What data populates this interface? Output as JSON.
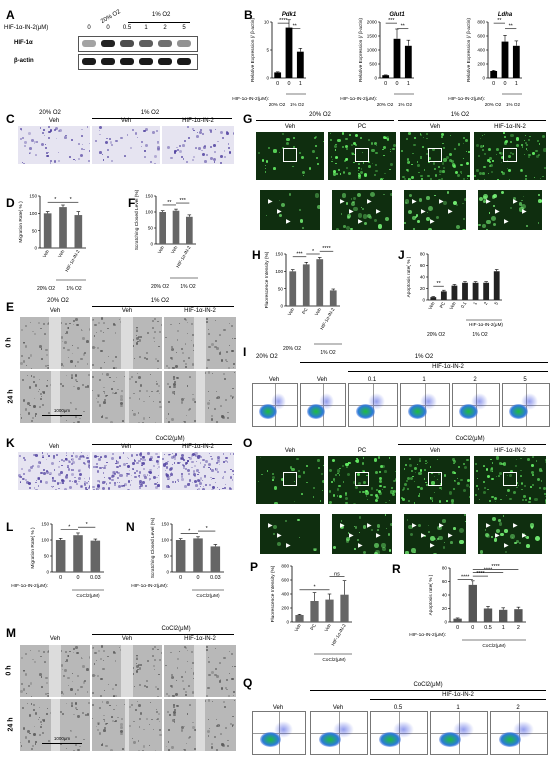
{
  "panels": {
    "A": {
      "letter": "A",
      "conditions": [
        "20% O2",
        "1% O2"
      ],
      "row_label": "HIF-1α-IN-2(μM)",
      "doses": [
        "0",
        "0",
        "0.5",
        "1",
        "2",
        "5"
      ],
      "bands": [
        {
          "label": "HIF-1α",
          "intensity": [
            0.2,
            0.95,
            0.7,
            0.6,
            0.5,
            0.3
          ]
        },
        {
          "label": "β-actin",
          "intensity": [
            1,
            1,
            1,
            1,
            1,
            1
          ]
        }
      ]
    },
    "B": {
      "letter": "B",
      "dose_label": "HIF-1α-IN-2(μM):",
      "ylabel": "Relative Expression (/ β-actin)",
      "doses": [
        "0",
        "0",
        "1"
      ],
      "groups": [
        "20% O2",
        "1% O2"
      ]
    },
    "C": {
      "letter": "C",
      "headers": [
        "20% O2",
        "1% O2"
      ],
      "images": [
        "Veh",
        "Veh",
        "HIF-1α-IN-2"
      ]
    },
    "D": {
      "letter": "D",
      "ylabel": "Migration Rate( % )",
      "cats": [
        "Veh",
        "Veh",
        "HIF-1α-IN-2"
      ],
      "groups": [
        "20% O2",
        "1% O2"
      ],
      "sig": [
        "*",
        "*"
      ]
    },
    "F": {
      "letter": "F",
      "ylabel": "Scratching Closed Level (%)",
      "cats": [
        "Veh",
        "Veh",
        "HIF-1α-IN-2"
      ],
      "groups": [
        "20% O2",
        "1% O2"
      ],
      "sig": [
        "**",
        "***"
      ]
    },
    "E": {
      "letter": "E",
      "headers": [
        "20% O2",
        "1% O2"
      ],
      "cols": [
        "Veh",
        "Veh",
        "HIF-1α-IN-2"
      ],
      "rows": [
        "0 h",
        "24 h"
      ],
      "scale": "1000μm"
    },
    "G": {
      "letter": "G",
      "headers": [
        "20% O2",
        "1% O2"
      ],
      "cols": [
        "Veh",
        "PC",
        "Veh",
        "HIF-1α-IN-2"
      ]
    },
    "H": {
      "letter": "H",
      "ylabel": "Fluorescence Intensity (%)",
      "cats": [
        "Veh",
        "PC",
        "Veh",
        "HIF-1α-IN-2"
      ],
      "groups": [
        "20% O2",
        "1% O2"
      ],
      "sig": [
        "***",
        "*",
        "****"
      ]
    },
    "J": {
      "letter": "J",
      "ylabel": "Apoptosis rate( % )",
      "cats": [
        "Veh",
        "PC",
        "Veh",
        "0.1",
        "1",
        "2",
        "5"
      ],
      "inhibitor": "HIF-1α-IN-2(μM)",
      "groups": [
        "20% O2",
        "1% O2"
      ],
      "sig": [
        "**"
      ]
    },
    "I": {
      "letter": "I",
      "group_left": "20% O2",
      "group_right": "1% O2",
      "inhibitor": "HIF-1α-IN-2",
      "cols": [
        "Veh",
        "Veh",
        "0.1",
        "1",
        "2",
        "5"
      ]
    },
    "K": {
      "letter": "K",
      "headers": [
        "CoCl2(μM)"
      ],
      "images": [
        "Veh",
        "Veh",
        "HIF-1α-IN-2"
      ]
    },
    "L": {
      "letter": "L",
      "ylabel": "Migration Rate( % )",
      "dose_label": "HIF-1α-IN-2(μM):",
      "doses": [
        "0",
        "0",
        "0.03"
      ],
      "group": "CoCl2(μM)",
      "sig": [
        "*",
        "*"
      ]
    },
    "N": {
      "letter": "N",
      "ylabel": "Scratching Closed Level (%)",
      "dose_label": "HIF-1α-IN-2(μM):",
      "doses": [
        "0",
        "0",
        "0.03"
      ],
      "group": "CoCl2(μM)",
      "sig": [
        "*",
        "*"
      ]
    },
    "M": {
      "letter": "M",
      "header": "CoCl2(μM)",
      "cols": [
        "Veh",
        "Veh",
        "HIF-1α-IN-2"
      ],
      "rows": [
        "0 h",
        "24 h"
      ],
      "scale": "1000μm"
    },
    "O": {
      "letter": "O",
      "header": "CoCl2(μM)",
      "cols": [
        "Veh",
        "PC",
        "Veh",
        "HIF-1α-IN-2"
      ]
    },
    "P": {
      "letter": "P",
      "ylabel": "Fluorescence Intensity (%)",
      "cats": [
        "Veh",
        "PC",
        "Veh",
        "HIF-1α-IN-2"
      ],
      "group": "CoCl2(μM)",
      "sig": [
        "*",
        "ns"
      ]
    },
    "R": {
      "letter": "R",
      "ylabel": "Apoptosis rate( % )",
      "dose_label": "HIF-1α-IN-2(μM):",
      "doses": [
        "0",
        "0",
        "0.5",
        "1",
        "2"
      ],
      "group": "CoCl2(μM)",
      "sig": [
        "****",
        "****",
        "****",
        "****"
      ]
    },
    "Q": {
      "letter": "Q",
      "header": "CoCl2(μM)",
      "inhibitor": "HIF-1α-IN-2",
      "cols": [
        "Veh",
        "Veh",
        "0.5",
        "1",
        "2"
      ]
    }
  },
  "chart_data": [
    {
      "type": "bar",
      "id": "B-Pdk1",
      "title": "Pdk1",
      "ylabel": "Relative Expression (/ β-actin)",
      "categories": [
        "0",
        "0",
        "1"
      ],
      "values": [
        1,
        9,
        4.7
      ],
      "errors": [
        0.1,
        1.4,
        0.6
      ],
      "ylim": [
        0,
        10
      ],
      "yticks": [
        0,
        5,
        10
      ],
      "sig": [
        "****",
        "**"
      ]
    },
    {
      "type": "bar",
      "id": "B-Glut1",
      "title": "Glut1",
      "ylabel": "Relative Expression (/ β-actin)",
      "categories": [
        "0",
        "0",
        "1"
      ],
      "values": [
        100,
        1400,
        1150
      ],
      "errors": [
        10,
        350,
        200
      ],
      "ylim": [
        0,
        2000
      ],
      "yticks": [
        0,
        500,
        1000,
        1500,
        2000
      ],
      "sig": [
        "***",
        "**"
      ]
    },
    {
      "type": "bar",
      "id": "B-Ldha",
      "title": "Ldha",
      "ylabel": "Relative Expression (/ β-actin)",
      "categories": [
        "0",
        "0",
        "1"
      ],
      "values": [
        100,
        520,
        460
      ],
      "errors": [
        10,
        90,
        70
      ],
      "ylim": [
        0,
        800
      ],
      "yticks": [
        0,
        200,
        400,
        600,
        800
      ],
      "sig": [
        "**",
        "**"
      ]
    },
    {
      "type": "bar",
      "id": "D",
      "categories": [
        "Veh",
        "Veh",
        "HIF-1α-IN-2"
      ],
      "values": [
        100,
        118,
        95
      ],
      "errors": [
        5,
        6,
        10
      ],
      "ylim": [
        0,
        150
      ],
      "yticks": [
        0,
        50,
        100,
        150
      ]
    },
    {
      "type": "bar",
      "id": "F",
      "categories": [
        "Veh",
        "Veh",
        "HIF-1α-IN-2"
      ],
      "values": [
        100,
        104,
        85
      ],
      "errors": [
        4,
        5,
        6
      ],
      "ylim": [
        0,
        150
      ],
      "yticks": [
        0,
        50,
        100,
        150
      ]
    },
    {
      "type": "bar",
      "id": "H",
      "categories": [
        "Veh",
        "PC",
        "Veh",
        "HIF-1α-IN-2"
      ],
      "values": [
        100,
        120,
        135,
        45
      ],
      "errors": [
        5,
        6,
        5,
        4
      ],
      "ylim": [
        0,
        150
      ],
      "yticks": [
        0,
        50,
        100,
        150
      ]
    },
    {
      "type": "bar",
      "id": "J",
      "categories": [
        "Veh",
        "PC",
        "Veh",
        "0.1",
        "1",
        "2",
        "5"
      ],
      "values": [
        5,
        15,
        25,
        30,
        30,
        30,
        50
      ],
      "errors": [
        1,
        2,
        2,
        2,
        2,
        2,
        3
      ],
      "ylim": [
        0,
        80
      ],
      "yticks": [
        0,
        20,
        40,
        60,
        80
      ]
    },
    {
      "type": "bar",
      "id": "L",
      "categories": [
        "0",
        "0",
        "0.03"
      ],
      "values": [
        100,
        115,
        98
      ],
      "errors": [
        5,
        7,
        5
      ],
      "ylim": [
        0,
        150
      ],
      "yticks": [
        0,
        50,
        100,
        150
      ]
    },
    {
      "type": "bar",
      "id": "N",
      "categories": [
        "0",
        "0",
        "0.03"
      ],
      "values": [
        100,
        105,
        80
      ],
      "errors": [
        4,
        5,
        6
      ],
      "ylim": [
        0,
        150
      ],
      "yticks": [
        0,
        50,
        100,
        150
      ]
    },
    {
      "type": "bar",
      "id": "P",
      "categories": [
        "Veh",
        "PC",
        "Veh",
        "HIF-1α-IN-2"
      ],
      "values": [
        100,
        300,
        320,
        390
      ],
      "errors": [
        10,
        120,
        80,
        200
      ],
      "ylim": [
        0,
        800
      ],
      "yticks": [
        0,
        200,
        400,
        600,
        800
      ]
    },
    {
      "type": "bar",
      "id": "R",
      "categories": [
        "0",
        "0",
        "0.5",
        "1",
        "2"
      ],
      "values": [
        5,
        55,
        20,
        18,
        19
      ],
      "errors": [
        1,
        6,
        3,
        3,
        3
      ],
      "ylim": [
        0,
        80
      ],
      "yticks": [
        0,
        20,
        40,
        60,
        80
      ]
    }
  ]
}
